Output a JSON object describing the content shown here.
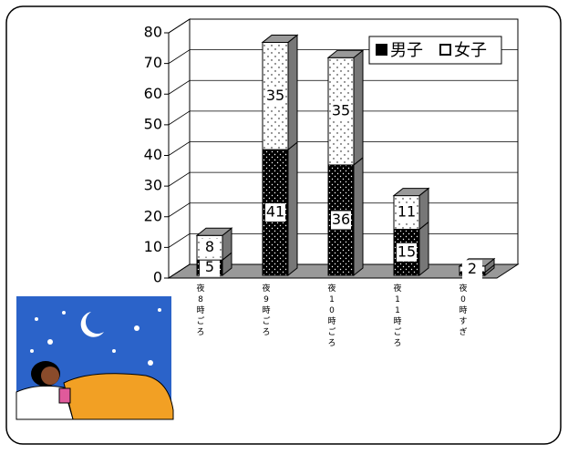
{
  "chart_data": {
    "type": "bar3d_stacked",
    "categories": [
      "夜8時ごろ",
      "夜9時ごろ",
      "夜10時ごろ",
      "夜11時ごろ",
      "夜0時すぎ"
    ],
    "series": [
      {
        "name": "男子",
        "color": "#000000",
        "values": [
          5,
          41,
          36,
          15,
          1
        ]
      },
      {
        "name": "女子",
        "color": "#ffffff",
        "values": [
          8,
          35,
          35,
          11,
          2
        ]
      }
    ],
    "ylim": [
      0,
      80
    ],
    "yticks": [
      0,
      10,
      20,
      30,
      40,
      50,
      60,
      70,
      80
    ],
    "grid": true,
    "legend": "top-right"
  }
}
